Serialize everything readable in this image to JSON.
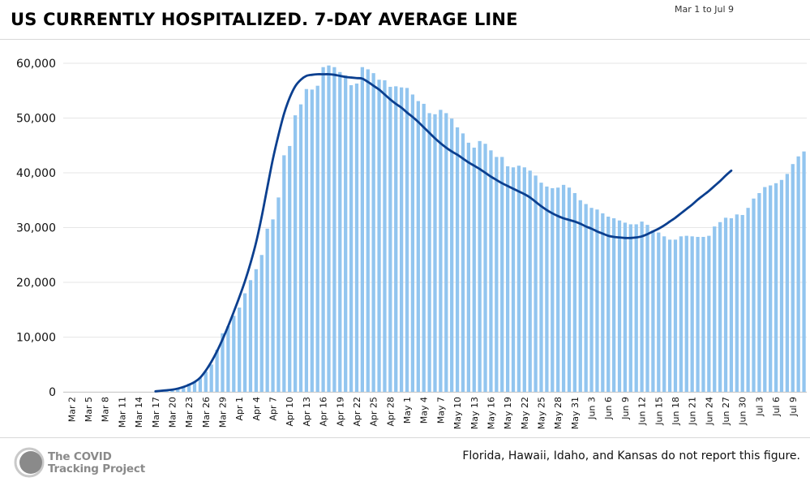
{
  "header": {
    "title": "US CURRENTLY HOSPITALIZED. 7-DAY AVERAGE LINE",
    "date_range": "Mar 1 to Jul 9"
  },
  "footer": {
    "logo_line1": "The COVID",
    "logo_line2": "Tracking Project",
    "note": "Florida, Hawaii, Idaho, and Kansas do not report this figure."
  },
  "colors": {
    "bar": "#92c5ef",
    "line": "#0b3f8f",
    "grid": "#e6e6e6",
    "logo": "#8a8a8a"
  },
  "chart_data": {
    "type": "bar",
    "title": "US CURRENTLY HOSPITALIZED. 7-DAY AVERAGE LINE",
    "xlabel": "",
    "ylabel": "",
    "ylim": [
      0,
      60000
    ],
    "yticks": [
      0,
      10000,
      20000,
      30000,
      40000,
      50000,
      60000
    ],
    "ytick_labels": [
      "0",
      "10,000",
      "20,000",
      "30,000",
      "40,000",
      "50,000",
      "60,000"
    ],
    "grid": true,
    "x_start": "Mar 1",
    "x_end": "Jul 9",
    "tick_labels": [
      "Mar 2",
      "Mar 5",
      "Mar 8",
      "Mar 11",
      "Mar 14",
      "Mar 17",
      "Mar 20",
      "Mar 23",
      "Mar 26",
      "Mar 29",
      "Apr 1",
      "Apr 4",
      "Apr 7",
      "Apr 10",
      "Apr 13",
      "Apr 16",
      "Apr 19",
      "Apr 22",
      "Apr 25",
      "Apr 28",
      "May 1",
      "May 4",
      "May 7",
      "May 10",
      "May 13",
      "May 16",
      "May 19",
      "May 22",
      "May 25",
      "May 28",
      "May 31",
      "Jun 3",
      "Jun 6",
      "Jun 9",
      "Jun 12",
      "Jun 15",
      "Jun 18",
      "Jun 21",
      "Jun 24",
      "Jun 27",
      "Jun 30",
      "Jul 3",
      "Jul 6",
      "Jul 9"
    ],
    "series": [
      {
        "name": "Currently hospitalized",
        "type": "bar",
        "values": [
          0,
          0,
          0,
          0,
          0,
          0,
          0,
          0,
          0,
          0,
          0,
          0,
          0,
          0,
          0,
          0,
          0,
          300,
          400,
          500,
          700,
          1000,
          1500,
          1900,
          2500,
          3700,
          5000,
          7700,
          10700,
          12000,
          13900,
          15400,
          18000,
          20400,
          22400,
          25000,
          29800,
          31500,
          35500,
          43200,
          44900,
          50500,
          52500,
          55300,
          55200,
          55900,
          59300,
          59600,
          59300,
          58400,
          57800,
          56000,
          56300,
          59300,
          58900,
          58200,
          57000,
          56900,
          55700,
          55800,
          55600,
          55500,
          54300,
          53100,
          52600,
          50900,
          50700,
          51500,
          50900,
          49900,
          48300,
          47200,
          45500,
          44600,
          45800,
          45300,
          44100,
          42900,
          42900,
          41200,
          41000,
          41300,
          41000,
          40400,
          39500,
          38200,
          37500,
          37200,
          37300,
          37800,
          37300,
          36300,
          35000,
          34300,
          33600,
          33300,
          32600,
          32000,
          31700,
          31300,
          30900,
          30600,
          30600,
          31100,
          30500,
          29500,
          29100,
          28400,
          27800,
          27800,
          28400,
          28500,
          28400,
          28300,
          28300,
          28500,
          30200,
          31000,
          31800,
          31700,
          32400,
          32300,
          33600,
          35300,
          36300,
          37400,
          37700,
          38100,
          38700,
          39800,
          41600,
          43000,
          43900
        ]
      },
      {
        "name": "7-day average",
        "type": "line",
        "start_index": 16,
        "values": [
          100,
          200,
          300,
          400,
          600,
          900,
          1300,
          1800,
          2600,
          3900,
          5500,
          7400,
          9600,
          12000,
          14600,
          17300,
          20200,
          23500,
          27300,
          32000,
          37300,
          42500,
          46900,
          50800,
          53700,
          55800,
          57000,
          57700,
          57900,
          58000,
          58000,
          58000,
          57900,
          57700,
          57500,
          57400,
          57300,
          57200,
          56600,
          55900,
          55200,
          54300,
          53400,
          52600,
          51900,
          51000,
          50200,
          49300,
          48300,
          47300,
          46300,
          45400,
          44600,
          43900,
          43300,
          42600,
          41900,
          41300,
          40700,
          40000,
          39300,
          38700,
          38100,
          37600,
          37100,
          36600,
          36100,
          35500,
          34700,
          33900,
          33200,
          32600,
          32100,
          31700,
          31400,
          31100,
          30700,
          30200,
          29800,
          29300,
          28900,
          28500,
          28300,
          28200,
          28100,
          28100,
          28200,
          28400,
          28800,
          29300,
          29800,
          30400,
          31100,
          31800,
          32600,
          33400,
          34200,
          35100,
          35900,
          36700,
          37600,
          38500,
          39500,
          40400
        ]
      }
    ]
  }
}
